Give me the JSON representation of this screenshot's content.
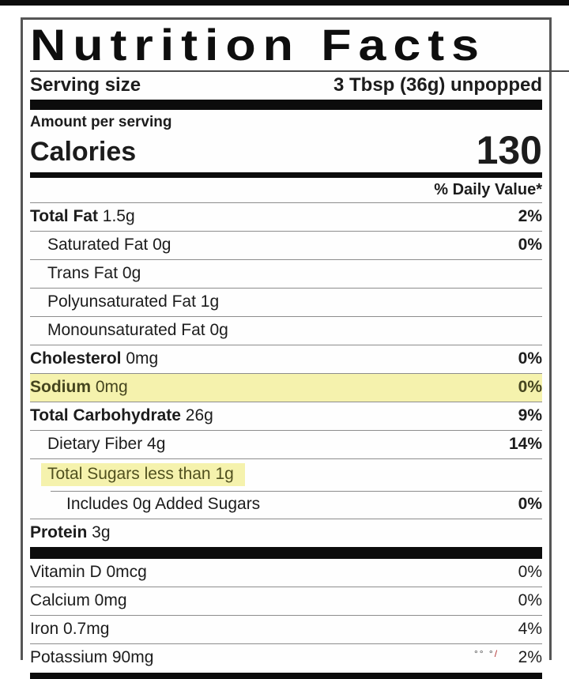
{
  "label": {
    "title": "Nutrition Facts",
    "serving": {
      "label": "Serving size",
      "value": "3 Tbsp (36g) unpopped"
    },
    "amount_per_serving": "Amount per serving",
    "calories": {
      "label": "Calories",
      "value": "130"
    },
    "daily_value_header": "% Daily Value*",
    "rows": [
      {
        "bold": "Total Fat",
        "rest": " 1.5g",
        "pct": "2%",
        "indent": 0,
        "highlight": ""
      },
      {
        "bold": "",
        "rest": "Saturated Fat 0g",
        "pct": "0%",
        "indent": 1,
        "highlight": ""
      },
      {
        "bold": "",
        "rest": "Trans Fat 0g",
        "pct": "",
        "indent": 1,
        "highlight": ""
      },
      {
        "bold": "",
        "rest": "Polyunsaturated Fat 1g",
        "pct": "",
        "indent": 1,
        "highlight": ""
      },
      {
        "bold": "",
        "rest": "Monounsaturated Fat 0g",
        "pct": "",
        "indent": 1,
        "highlight": ""
      },
      {
        "bold": "Cholesterol",
        "rest": " 0mg",
        "pct": "0%",
        "indent": 0,
        "highlight": ""
      },
      {
        "bold": "Sodium",
        "rest": " 0mg",
        "pct": "0%",
        "indent": 0,
        "highlight": "row"
      },
      {
        "bold": "Total Carbohydrate",
        "rest": " 26g",
        "pct": "9%",
        "indent": 0,
        "highlight": ""
      },
      {
        "bold": "",
        "rest": "Dietary Fiber 4g",
        "pct": "14%",
        "indent": 1,
        "highlight": ""
      },
      {
        "bold": "",
        "rest": "Total Sugars less than 1g",
        "pct": "",
        "indent": 1,
        "highlight": "text"
      },
      {
        "bold": "",
        "rest": "Includes 0g Added Sugars",
        "pct": "0%",
        "indent": 2,
        "highlight": ""
      },
      {
        "bold": "Protein",
        "rest": " 3g",
        "pct": "",
        "indent": 0,
        "highlight": ""
      }
    ],
    "vitamin_rows": [
      {
        "bold": "",
        "rest": "Vitamin D 0mcg",
        "pct": "0%",
        "indent": 0,
        "highlight": ""
      },
      {
        "bold": "",
        "rest": "Calcium 0mg",
        "pct": "0%",
        "indent": 0,
        "highlight": ""
      },
      {
        "bold": "",
        "rest": "Iron 0.7mg",
        "pct": "4%",
        "indent": 0,
        "highlight": ""
      },
      {
        "bold": "",
        "rest": "Potassium 90mg",
        "pct": "2%",
        "indent": 0,
        "highlight": ""
      }
    ],
    "colors": {
      "highlight": "#f5f2ad",
      "bar": "#0c0c0c",
      "hairline": "#8d8d8d",
      "border": "#565656"
    },
    "artifact": {
      "gray": "°° °",
      "red": "/"
    }
  }
}
